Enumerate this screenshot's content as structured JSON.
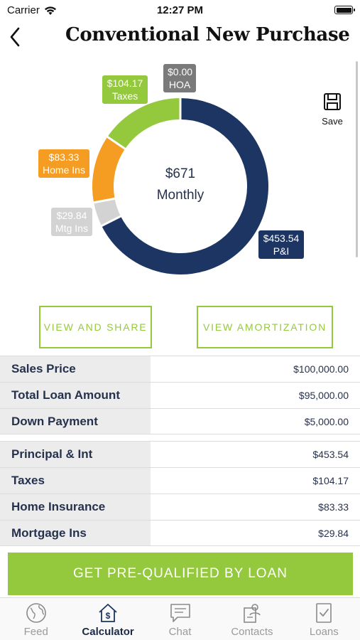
{
  "status_bar": {
    "carrier": "Carrier",
    "time": "12:27 PM"
  },
  "header": {
    "title": "Conventional New Purchase"
  },
  "chart_data": {
    "type": "pie",
    "center_amount": "$671",
    "center_label": "Monthly",
    "slices": [
      {
        "label": "P&I",
        "value": 453.54,
        "display": "$453.54",
        "color": "#1c3562"
      },
      {
        "label": "Mtg Ins",
        "value": 29.84,
        "display": "$29.84",
        "color": "#d3d3d3"
      },
      {
        "label": "Home Ins",
        "value": 83.33,
        "display": "$83.33",
        "color": "#f59d22"
      },
      {
        "label": "Taxes",
        "value": 104.17,
        "display": "$104.17",
        "color": "#95c93d"
      },
      {
        "label": "HOA",
        "value": 0.0,
        "display": "$0.00",
        "color": "#7a7a7a"
      }
    ]
  },
  "save": {
    "label": "Save"
  },
  "actions": {
    "view_share": "VIEW AND SHARE",
    "view_amortization": "VIEW AMORTIZATION"
  },
  "loan_summary": {
    "rows": [
      {
        "label": "Sales Price",
        "value": "$100,000.00"
      },
      {
        "label": "Total Loan Amount",
        "value": "$95,000.00"
      },
      {
        "label": "Down Payment",
        "value": "$5,000.00"
      }
    ]
  },
  "payment_breakdown": {
    "rows": [
      {
        "label": "Principal & Int",
        "value": "$453.54"
      },
      {
        "label": "Taxes",
        "value": "$104.17"
      },
      {
        "label": "Home Insurance",
        "value": "$83.33"
      },
      {
        "label": "Mortgage Ins",
        "value": "$29.84"
      }
    ]
  },
  "cta": {
    "label": "GET PRE-QUALIFIED BY LOAN"
  },
  "tabs": [
    {
      "label": "Feed",
      "icon": "globe-icon",
      "active": false
    },
    {
      "label": "Calculator",
      "icon": "house-dollar-icon",
      "active": true
    },
    {
      "label": "Chat",
      "icon": "chat-bubble-icon",
      "active": false
    },
    {
      "label": "Contacts",
      "icon": "contacts-icon",
      "active": false
    },
    {
      "label": "Loans",
      "icon": "document-check-icon",
      "active": false
    }
  ],
  "colors": {
    "accent": "#95c93d",
    "navy": "#1c3562",
    "text": "#26324d"
  }
}
